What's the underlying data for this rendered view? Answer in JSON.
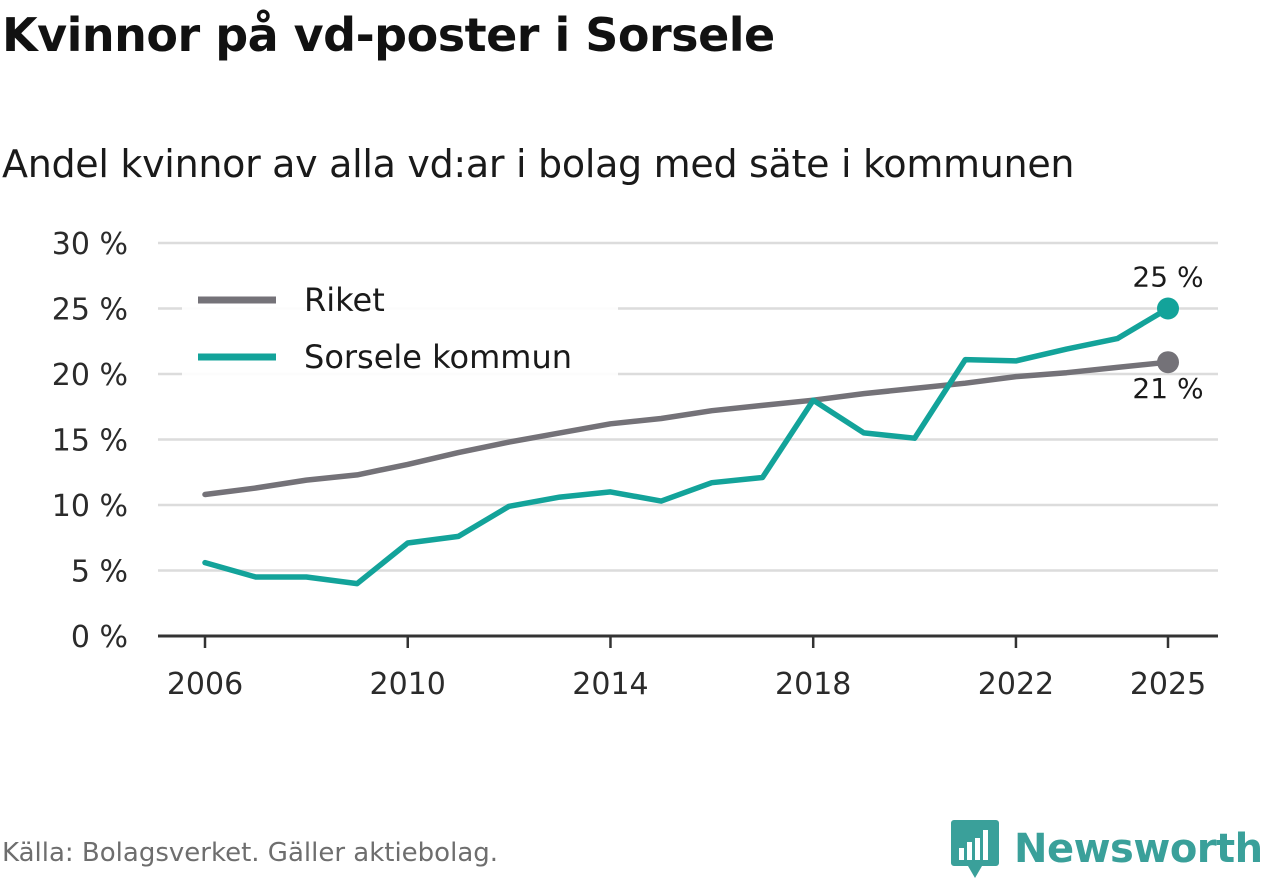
{
  "header": {
    "title": "Kvinnor på vd-poster i Sorsele",
    "subtitle": "Andel kvinnor av alla vd:ar i bolag med säte i kommunen"
  },
  "footer": {
    "source": "Källa: Bolagsverket. Gäller aktiebolag.",
    "brand": "Newsworthy"
  },
  "colors": {
    "riket": "#747278",
    "kommun": "#13a39a",
    "grid": "#dcdcdc",
    "axis": "#333333",
    "brand": "#3aa09a"
  },
  "chart_data": {
    "type": "line",
    "title": "Kvinnor på vd-poster i Sorsele",
    "subtitle": "Andel kvinnor av alla vd:ar i bolag med säte i kommunen",
    "xlabel": "",
    "ylabel": "",
    "xlim": [
      2006,
      2025
    ],
    "ylim": [
      0,
      30
    ],
    "y_ticks": [
      0,
      5,
      10,
      15,
      20,
      25,
      30
    ],
    "y_tick_labels": [
      "0 %",
      "5 %",
      "10 %",
      "15 %",
      "20 %",
      "25 %",
      "30 %"
    ],
    "x_ticks": [
      2006,
      2010,
      2014,
      2018,
      2022,
      2025
    ],
    "x_tick_labels": [
      "2006",
      "2010",
      "2014",
      "2018",
      "2022",
      "2025"
    ],
    "grid": true,
    "legend_position": "top-left",
    "x": [
      2006,
      2007,
      2008,
      2009,
      2010,
      2011,
      2012,
      2013,
      2014,
      2015,
      2016,
      2017,
      2018,
      2019,
      2020,
      2021,
      2022,
      2023,
      2024,
      2025
    ],
    "series": [
      {
        "name": "Riket",
        "values": [
          10.8,
          11.3,
          11.9,
          12.3,
          13.1,
          14.0,
          14.8,
          15.5,
          16.2,
          16.6,
          17.2,
          17.6,
          18.0,
          18.5,
          18.9,
          19.3,
          19.8,
          20.1,
          20.5,
          20.9
        ],
        "end_label": "21 %"
      },
      {
        "name": "Sorsele kommun",
        "values": [
          5.6,
          4.5,
          4.5,
          4.0,
          7.1,
          7.6,
          9.9,
          10.6,
          11.0,
          10.3,
          11.7,
          12.1,
          18.0,
          15.5,
          15.1,
          21.1,
          21.0,
          21.9,
          22.7,
          25.0
        ],
        "end_label": "25 %"
      }
    ]
  }
}
